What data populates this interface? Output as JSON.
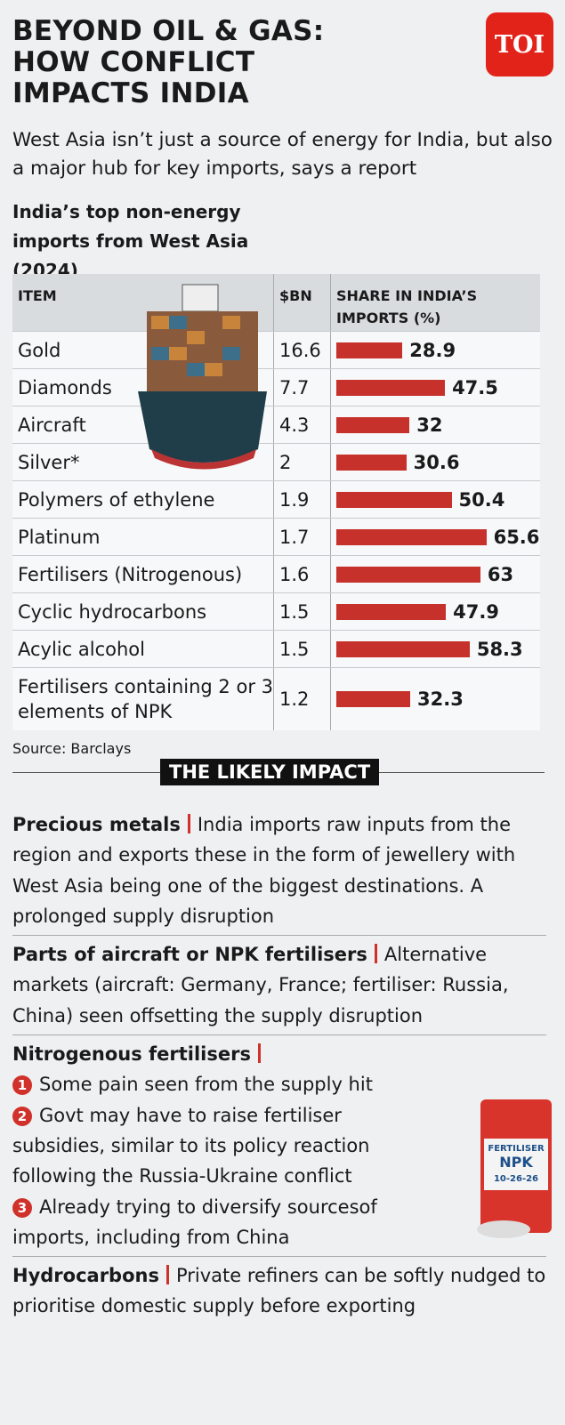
{
  "header": {
    "title_lines": [
      "BEYOND OIL & GAS:",
      "HOW CONFLICT",
      "IMPACTS INDIA"
    ],
    "logo": "TOI",
    "subtitle": "West Asia isn’t just a source of energy for India, but also a major hub for key imports, says a report"
  },
  "table_title": "India’s top non-energy imports from West Asia (2024)",
  "table": {
    "columns": [
      "ITEM",
      "$BN",
      "SHARE IN INDIA’S IMPORTS (%)"
    ],
    "rows": [
      [
        "Gold",
        16.6,
        28.9
      ],
      [
        "Diamonds",
        7.7,
        47.5
      ],
      [
        "Aircraft",
        4.3,
        32
      ],
      [
        "Silver*",
        2,
        30.6
      ],
      [
        "Polymers of ethylene",
        1.9,
        50.4
      ],
      [
        "Platinum",
        1.7,
        65.6
      ],
      [
        "Fertilisers (Nitrogenous)",
        1.6,
        63
      ],
      [
        "Cyclic hydrocarbons",
        1.5,
        47.9
      ],
      [
        "Acylic alcohol",
        1.5,
        58.3
      ],
      [
        "Fertilisers containing 2 or 3 elements of NPK",
        1.2,
        32.3
      ]
    ]
  },
  "source": "Source: Barclays",
  "impact_heading": "THE LIKELY IMPACT",
  "impacts": [
    {
      "heading": "Precious metals",
      "text": "India imports raw inputs from the region and exports these in the form of jewellery with West Asia being one of the biggest destinations. A prolonged supply disruption"
    },
    {
      "heading": "Parts of aircraft or NPK fertilisers",
      "text": "Alternative markets (aircraft: Germany, France; fertiliser: Russia, China) seen offsetting the supply disruption"
    },
    {
      "heading": "Nitrogenous fertilisers",
      "items": [
        {
          "number": "1",
          "text": "Some pain seen from the supply hit"
        },
        {
          "number": "2",
          "text": "Govt may have to raise fertiliser subsidies, similar to its policy reaction following the Russia-Ukraine conflict"
        },
        {
          "number": "3",
          "text": "Already trying to diversify sourcesof imports, including from China"
        }
      ]
    },
    {
      "heading": "Hydrocarbons",
      "text": "Private refiners can be softly nudged to prioritise domestic supply before exporting"
    }
  ],
  "bag": {
    "label": "FERTILISER",
    "brand": "NPK",
    "grade": "10-26-26"
  }
}
